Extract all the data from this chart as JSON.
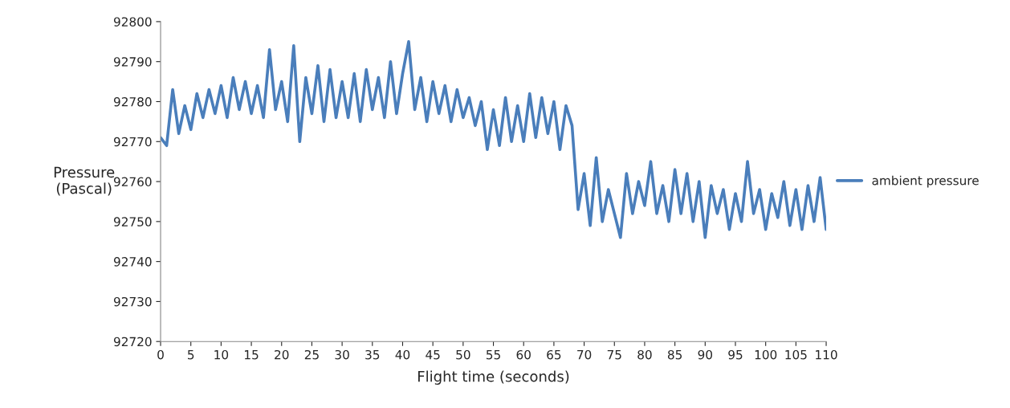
{
  "chart_data": {
    "type": "line",
    "xlabel": "Flight time (seconds)",
    "ylabel": "Pressure\n(Pascal)",
    "xlim": [
      0,
      110
    ],
    "xticks": [
      0,
      5,
      10,
      15,
      20,
      25,
      30,
      35,
      40,
      45,
      50,
      55,
      60,
      65,
      70,
      75,
      80,
      85,
      90,
      95,
      100,
      105,
      110
    ],
    "ylim": [
      92720,
      92800
    ],
    "yticks": [
      92720,
      92730,
      92740,
      92750,
      92760,
      92770,
      92780,
      92790,
      92800
    ],
    "grid": false,
    "legend": "right",
    "marker": "none",
    "line_style": "solid",
    "series": [
      {
        "name": "ambient pressure",
        "color": "#4a7ebb",
        "x": [
          0,
          1,
          2,
          3,
          4,
          5,
          6,
          7,
          8,
          9,
          10,
          11,
          12,
          13,
          14,
          15,
          16,
          17,
          18,
          19,
          20,
          21,
          22,
          23,
          24,
          25,
          26,
          27,
          28,
          29,
          30,
          31,
          32,
          33,
          34,
          35,
          36,
          37,
          38,
          39,
          40,
          41,
          42,
          43,
          44,
          45,
          46,
          47,
          48,
          49,
          50,
          51,
          52,
          53,
          54,
          55,
          56,
          57,
          58,
          59,
          60,
          61,
          62,
          63,
          64,
          65,
          66,
          67,
          68,
          69,
          70,
          71,
          72,
          73,
          74,
          75,
          76,
          77,
          78,
          79,
          80,
          81,
          82,
          83,
          84,
          85,
          86,
          87,
          88,
          89,
          90,
          91,
          92,
          93,
          94,
          95,
          96,
          97,
          98,
          99,
          100,
          101,
          102,
          103,
          104,
          105,
          106,
          107,
          108,
          109,
          110
        ],
        "values": [
          92771,
          92769,
          92783,
          92772,
          92779,
          92773,
          92782,
          92776,
          92783,
          92777,
          92784,
          92776,
          92786,
          92778,
          92785,
          92777,
          92784,
          92776,
          92793,
          92778,
          92785,
          92775,
          92794,
          92770,
          92786,
          92777,
          92789,
          92775,
          92788,
          92776,
          92785,
          92776,
          92787,
          92775,
          92788,
          92778,
          92786,
          92776,
          92790,
          92777,
          92787,
          92795,
          92778,
          92786,
          92775,
          92785,
          92777,
          92784,
          92775,
          92783,
          92776,
          92781,
          92774,
          92780,
          92768,
          92778,
          92769,
          92781,
          92770,
          92779,
          92770,
          92782,
          92771,
          92781,
          92772,
          92780,
          92768,
          92779,
          92774,
          92753,
          92762,
          92749,
          92766,
          92750,
          92758,
          92752,
          92746,
          92762,
          92752,
          92760,
          92754,
          92765,
          92752,
          92759,
          92750,
          92763,
          92752,
          92762,
          92750,
          92760,
          92746,
          92759,
          92752,
          92758,
          92748,
          92757,
          92750,
          92765,
          92752,
          92758,
          92748,
          92757,
          92751,
          92760,
          92749,
          92758,
          92748,
          92759,
          92750,
          92761,
          92748
        ]
      }
    ]
  }
}
